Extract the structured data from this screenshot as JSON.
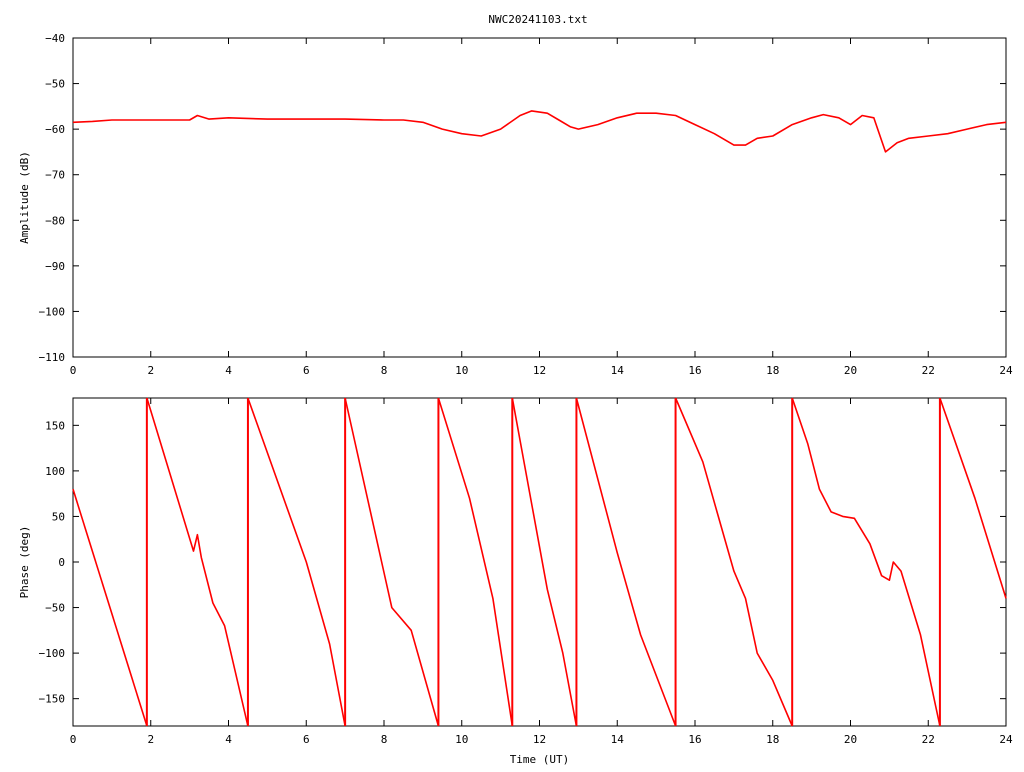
{
  "title": "NWC20241103.txt",
  "colors": {
    "series": "#ff0000",
    "axes": "#000000",
    "background": "#ffffff"
  },
  "chart_data": [
    {
      "type": "line",
      "ylabel": "Amplitude (dB)",
      "xlabel": "",
      "xlim": [
        0,
        24
      ],
      "ylim": [
        -110,
        -40
      ],
      "xticks": [
        0,
        2,
        4,
        6,
        8,
        10,
        12,
        14,
        16,
        18,
        20,
        22,
        24
      ],
      "yticks": [
        -40,
        -50,
        -60,
        -70,
        -80,
        -90,
        -100,
        -110
      ],
      "grid": false,
      "series": [
        {
          "x": [
            0,
            0.5,
            1,
            2,
            3,
            3.2,
            3.5,
            4,
            5,
            6,
            7,
            8,
            8.5,
            9,
            9.5,
            10,
            10.5,
            11,
            11.5,
            11.8,
            12.2,
            12.5,
            12.8,
            13,
            13.5,
            14,
            14.5,
            15,
            15.5,
            16,
            16.5,
            17,
            17.3,
            17.6,
            18,
            18.5,
            19,
            19.3,
            19.7,
            20,
            20.3,
            20.6,
            20.9,
            21.2,
            21.5,
            22,
            22.5,
            23,
            23.5,
            24
          ],
          "y": [
            -58.5,
            -58.3,
            -58,
            -58,
            -58,
            -57,
            -57.8,
            -57.5,
            -57.8,
            -57.8,
            -57.8,
            -58,
            -58,
            -58.5,
            -60,
            -61,
            -61.5,
            -60,
            -57,
            -56,
            -56.5,
            -58,
            -59.5,
            -60,
            -59,
            -57.5,
            -56.5,
            -56.5,
            -57,
            -59,
            -61,
            -63.5,
            -63.5,
            -62,
            -61.5,
            -59,
            -57.5,
            -56.8,
            -57.5,
            -59,
            -57,
            -57.5,
            -65,
            -63,
            -62,
            -61.5,
            -61,
            -60,
            -59,
            -58.5
          ]
        }
      ]
    },
    {
      "type": "line",
      "ylabel": "Phase (deg)",
      "xlabel": "Time (UT)",
      "xlim": [
        0,
        24
      ],
      "ylim": [
        -180,
        180
      ],
      "xticks": [
        0,
        2,
        4,
        6,
        8,
        10,
        12,
        14,
        16,
        18,
        20,
        22,
        24
      ],
      "yticks": [
        150,
        100,
        50,
        0,
        -50,
        -100,
        -150
      ],
      "grid": false,
      "series": [
        {
          "segments": [
            {
              "x": [
                0,
                1.9
              ],
              "y": [
                80,
                -180
              ]
            },
            {
              "x": [
                1.9,
                3.1,
                3.2,
                3.3,
                3.6,
                3.9,
                4.5
              ],
              "y": [
                180,
                12,
                30,
                5,
                -45,
                -70,
                -180
              ]
            },
            {
              "x": [
                4.5,
                6,
                6.6,
                7.0
              ],
              "y": [
                180,
                0,
                -90,
                -180
              ]
            },
            {
              "x": [
                7.0,
                8.2,
                8.7,
                9.4
              ],
              "y": [
                180,
                -50,
                -75,
                -180
              ]
            },
            {
              "x": [
                9.4,
                10.2,
                10.8,
                11.3
              ],
              "y": [
                180,
                70,
                -40,
                -180
              ]
            },
            {
              "x": [
                11.3,
                12.2,
                12.6,
                12.95
              ],
              "y": [
                180,
                -30,
                -100,
                -180
              ]
            },
            {
              "x": [
                12.95,
                14,
                14.6,
                15.5
              ],
              "y": [
                180,
                10,
                -80,
                -180
              ]
            },
            {
              "x": [
                15.5,
                16.2,
                16.6,
                17.0,
                17.3,
                17.6,
                18.0,
                18.5
              ],
              "y": [
                180,
                110,
                50,
                -10,
                -40,
                -100,
                -130,
                -180
              ]
            },
            {
              "x": [
                18.5,
                18.9,
                19.2,
                19.5,
                19.8,
                20.1,
                20.5,
                20.8,
                21.0,
                21.1,
                21.3,
                21.8,
                22.3
              ],
              "y": [
                180,
                130,
                80,
                55,
                50,
                48,
                20,
                -15,
                -20,
                0,
                -10,
                -80,
                -180
              ]
            },
            {
              "x": [
                22.3,
                23.2,
                24
              ],
              "y": [
                180,
                70,
                -40
              ]
            }
          ]
        }
      ]
    }
  ]
}
